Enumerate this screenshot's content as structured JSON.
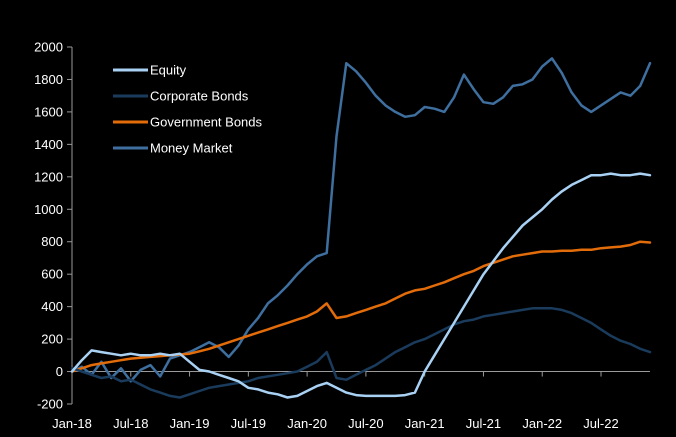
{
  "chart_data": {
    "type": "line",
    "title": "",
    "xlabel": "",
    "ylabel": "",
    "ylim": [
      -200,
      2000
    ],
    "yticks": [
      -200,
      0,
      200,
      400,
      600,
      800,
      1000,
      1200,
      1400,
      1600,
      1800,
      2000
    ],
    "xlim": [
      0,
      59
    ],
    "xticks": [
      {
        "label": "Jan-18",
        "x": 0
      },
      {
        "label": "Jul-18",
        "x": 6
      },
      {
        "label": "Jan-19",
        "x": 12
      },
      {
        "label": "Jul-19",
        "x": 18
      },
      {
        "label": "Jan-20",
        "x": 24
      },
      {
        "label": "Jul-20",
        "x": 30
      },
      {
        "label": "Jan-21",
        "x": 36
      },
      {
        "label": "Jul-21",
        "x": 42
      },
      {
        "label": "Jan-22",
        "x": 48
      },
      {
        "label": "Jul-22",
        "x": 54
      }
    ],
    "legend_position": "top-left",
    "series": [
      {
        "name": "Equity",
        "color": "#a9d1f4",
        "width": 2.5,
        "x": [
          0,
          1,
          2,
          3,
          4,
          5,
          6,
          7,
          8,
          9,
          10,
          11,
          12,
          13,
          14,
          15,
          16,
          17,
          18,
          19,
          20,
          21,
          22,
          23,
          24,
          25,
          26,
          27,
          28,
          29,
          30,
          31,
          32,
          33,
          34,
          35,
          36,
          37,
          38,
          39,
          40,
          41,
          42,
          43,
          44,
          45,
          46,
          47,
          48,
          49,
          50,
          51,
          52,
          53,
          54,
          55,
          56,
          57,
          58,
          59
        ],
        "values": [
          0,
          70,
          130,
          120,
          110,
          100,
          110,
          100,
          100,
          110,
          100,
          110,
          60,
          10,
          0,
          -20,
          -40,
          -60,
          -100,
          -110,
          -130,
          -140,
          -160,
          -150,
          -120,
          -90,
          -70,
          -100,
          -130,
          -145,
          -150,
          -150,
          -150,
          -150,
          -145,
          -130,
          0,
          100,
          200,
          300,
          400,
          500,
          600,
          680,
          760,
          830,
          900,
          950,
          1000,
          1060,
          1110,
          1150,
          1180,
          1210,
          1210,
          1220,
          1210,
          1210,
          1220,
          1210
        ]
      },
      {
        "name": "Corporate Bonds",
        "color": "#1a3b5c",
        "width": 2.5,
        "x": [
          0,
          1,
          2,
          3,
          4,
          5,
          6,
          7,
          8,
          9,
          10,
          11,
          12,
          13,
          14,
          15,
          16,
          17,
          18,
          19,
          20,
          21,
          22,
          23,
          24,
          25,
          26,
          27,
          28,
          29,
          30,
          31,
          32,
          33,
          34,
          35,
          36,
          37,
          38,
          39,
          40,
          41,
          42,
          43,
          44,
          45,
          46,
          47,
          48,
          49,
          50,
          51,
          52,
          53,
          54,
          55,
          56,
          57,
          58,
          59
        ],
        "values": [
          20,
          0,
          -20,
          -40,
          -30,
          -60,
          -50,
          -80,
          -110,
          -130,
          -150,
          -160,
          -140,
          -120,
          -100,
          -90,
          -80,
          -70,
          -60,
          -40,
          -30,
          -20,
          -10,
          0,
          30,
          60,
          120,
          -40,
          -50,
          -20,
          10,
          40,
          80,
          120,
          150,
          180,
          200,
          230,
          260,
          290,
          310,
          320,
          340,
          350,
          360,
          370,
          380,
          390,
          390,
          390,
          380,
          360,
          330,
          300,
          260,
          220,
          190,
          170,
          140,
          120
        ]
      },
      {
        "name": "Government Bonds",
        "color": "#e36c0a",
        "width": 2.5,
        "x": [
          0,
          1,
          2,
          3,
          4,
          5,
          6,
          7,
          8,
          9,
          10,
          11,
          12,
          13,
          14,
          15,
          16,
          17,
          18,
          19,
          20,
          21,
          22,
          23,
          24,
          25,
          26,
          27,
          28,
          29,
          30,
          31,
          32,
          33,
          34,
          35,
          36,
          37,
          38,
          39,
          40,
          41,
          42,
          43,
          44,
          45,
          46,
          47,
          48,
          49,
          50,
          51,
          52,
          53,
          54,
          55,
          56,
          57,
          58,
          59
        ],
        "values": [
          0,
          20,
          40,
          50,
          60,
          70,
          80,
          85,
          90,
          95,
          100,
          105,
          110,
          125,
          140,
          160,
          180,
          200,
          220,
          240,
          260,
          280,
          300,
          320,
          340,
          370,
          420,
          330,
          340,
          360,
          380,
          400,
          420,
          450,
          480,
          500,
          510,
          530,
          550,
          575,
          600,
          620,
          650,
          670,
          690,
          710,
          720,
          730,
          740,
          740,
          745,
          745,
          750,
          750,
          760,
          765,
          770,
          780,
          800,
          795
        ]
      },
      {
        "name": "Money Market",
        "color": "#3e6f9f",
        "width": 2.5,
        "x": [
          0,
          1,
          2,
          3,
          4,
          5,
          6,
          7,
          8,
          9,
          10,
          11,
          12,
          13,
          14,
          15,
          16,
          17,
          18,
          19,
          20,
          21,
          22,
          23,
          24,
          25,
          26,
          27,
          28,
          29,
          30,
          31,
          32,
          33,
          34,
          35,
          36,
          37,
          38,
          39,
          40,
          41,
          42,
          43,
          44,
          45,
          46,
          47,
          48,
          49,
          50,
          51,
          52,
          53,
          54,
          55,
          56,
          57,
          58,
          59
        ],
        "values": [
          0,
          30,
          -20,
          60,
          -40,
          20,
          -60,
          10,
          40,
          -30,
          80,
          100,
          120,
          150,
          180,
          150,
          90,
          160,
          260,
          330,
          420,
          470,
          530,
          600,
          660,
          710,
          730,
          1450,
          1900,
          1850,
          1780,
          1700,
          1640,
          1600,
          1570,
          1580,
          1630,
          1620,
          1600,
          1690,
          1830,
          1740,
          1660,
          1650,
          1690,
          1760,
          1770,
          1800,
          1880,
          1930,
          1840,
          1720,
          1640,
          1600,
          1640,
          1680,
          1720,
          1700,
          1760,
          1900
        ]
      }
    ]
  }
}
